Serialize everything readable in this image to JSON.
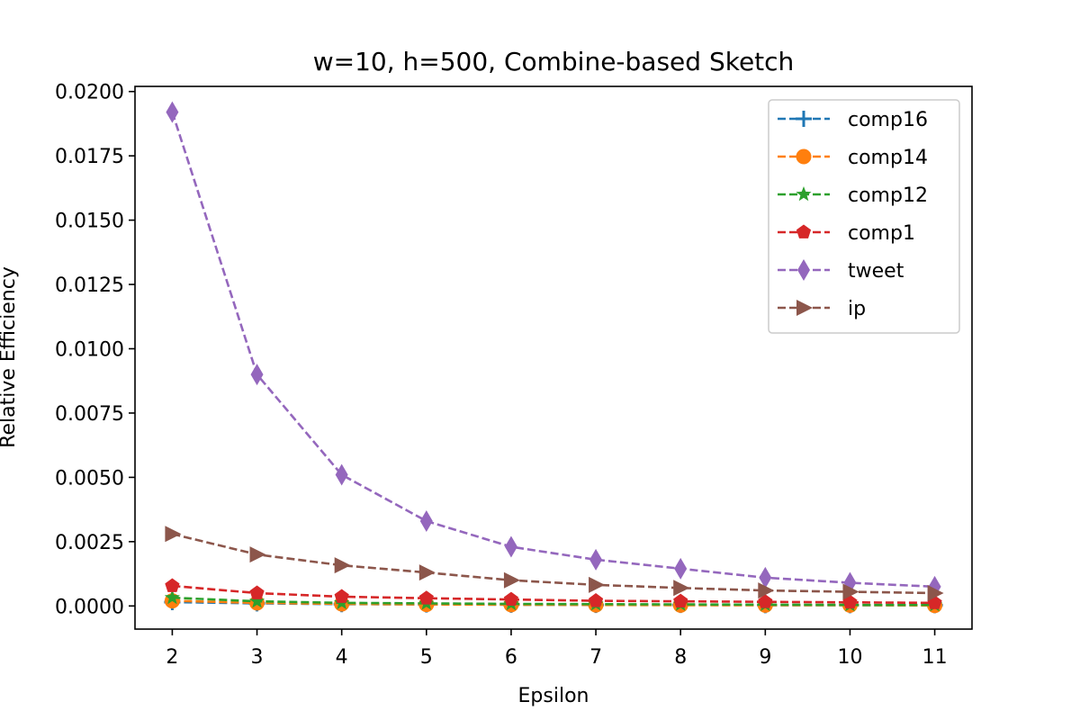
{
  "chart_data": {
    "type": "line",
    "title": "w=10, h=500, Combine-based Sketch",
    "xlabel": "Epsilon",
    "ylabel": "Relative Efficiency",
    "x": [
      2,
      3,
      4,
      5,
      6,
      7,
      8,
      9,
      10,
      11
    ],
    "xlim": [
      1.56,
      11.44
    ],
    "ylim": [
      -0.0009,
      0.0202
    ],
    "xticks": [
      "2",
      "3",
      "4",
      "5",
      "6",
      "7",
      "8",
      "9",
      "10",
      "11"
    ],
    "yticks": [
      "0.0000",
      "0.0025",
      "0.0050",
      "0.0075",
      "0.0100",
      "0.0125",
      "0.0150",
      "0.0175",
      "0.0200"
    ],
    "ytick_values": [
      0,
      0.0025,
      0.005,
      0.0075,
      0.01,
      0.0125,
      0.015,
      0.0175,
      0.02
    ],
    "grid": false,
    "legend_position": "upper right",
    "series": [
      {
        "name": "comp16",
        "color": "#1f77b4",
        "marker": "plus",
        "values": [
          0.00015,
          0.0001,
          7e-05,
          6e-05,
          5e-05,
          4e-05,
          4e-05,
          3e-05,
          3e-05,
          3e-05
        ]
      },
      {
        "name": "comp14",
        "color": "#ff7f0e",
        "marker": "circle",
        "values": [
          0.0002,
          0.00012,
          8e-05,
          6e-05,
          5e-05,
          4e-05,
          3e-05,
          3e-05,
          3e-05,
          2e-05
        ]
      },
      {
        "name": "comp12",
        "color": "#2ca02c",
        "marker": "star",
        "values": [
          0.00032,
          0.00018,
          0.00012,
          0.0001,
          8e-05,
          7e-05,
          6e-05,
          5e-05,
          4e-05,
          4e-05
        ]
      },
      {
        "name": "comp1",
        "color": "#d62728",
        "marker": "pentagon",
        "values": [
          0.00078,
          0.0005,
          0.00036,
          0.0003,
          0.00025,
          0.0002,
          0.00018,
          0.00016,
          0.00014,
          0.00012
        ]
      },
      {
        "name": "tweet",
        "color": "#9467bd",
        "marker": "thin-diamond",
        "values": [
          0.0192,
          0.009,
          0.0051,
          0.0033,
          0.0023,
          0.0018,
          0.00145,
          0.0011,
          0.0009,
          0.00075
        ]
      },
      {
        "name": "ip",
        "color": "#8c564b",
        "marker": "triangle-right",
        "values": [
          0.0028,
          0.002,
          0.00158,
          0.0013,
          0.001,
          0.00082,
          0.0007,
          0.0006,
          0.00055,
          0.0005
        ]
      }
    ]
  }
}
